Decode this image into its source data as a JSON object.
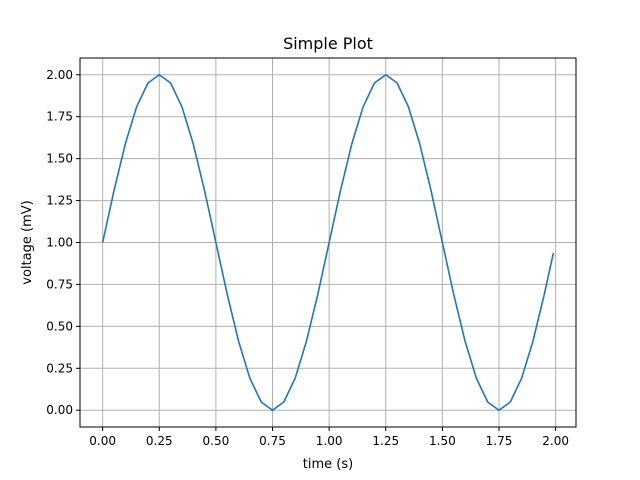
{
  "chart_data": {
    "type": "line",
    "title": "Simple Plot",
    "xlabel": "time (s)",
    "ylabel": "voltage (mV)",
    "xlim": [
      -0.1,
      2.09
    ],
    "ylim": [
      -0.1,
      2.1
    ],
    "xticks": [
      0.0,
      0.25,
      0.5,
      0.75,
      1.0,
      1.25,
      1.5,
      1.75,
      2.0
    ],
    "xtick_labels": [
      "0.00",
      "0.25",
      "0.50",
      "0.75",
      "1.00",
      "1.25",
      "1.50",
      "1.75",
      "2.00"
    ],
    "yticks": [
      0.0,
      0.25,
      0.5,
      0.75,
      1.0,
      1.25,
      1.5,
      1.75,
      2.0
    ],
    "ytick_labels": [
      "0.00",
      "0.25",
      "0.50",
      "0.75",
      "1.00",
      "1.25",
      "1.50",
      "1.75",
      "2.00"
    ],
    "grid": true,
    "color": "#1f77b4",
    "series": [
      {
        "x": [
          0.0,
          0.05,
          0.1,
          0.15,
          0.2,
          0.25,
          0.3,
          0.35,
          0.4,
          0.45,
          0.5,
          0.55,
          0.6,
          0.65,
          0.7,
          0.75,
          0.8,
          0.85,
          0.9,
          0.95,
          1.0,
          1.05,
          1.1,
          1.15,
          1.2,
          1.25,
          1.3,
          1.35,
          1.4,
          1.45,
          1.5,
          1.55,
          1.6,
          1.65,
          1.7,
          1.75,
          1.8,
          1.85,
          1.9,
          1.95,
          1.99
        ],
        "y": [
          1.0,
          1.309,
          1.588,
          1.809,
          1.951,
          2.0,
          1.951,
          1.809,
          1.588,
          1.309,
          1.0,
          0.691,
          0.412,
          0.191,
          0.049,
          0.0,
          0.049,
          0.191,
          0.412,
          0.691,
          1.0,
          1.309,
          1.588,
          1.809,
          1.951,
          2.0,
          1.951,
          1.809,
          1.588,
          1.309,
          1.0,
          0.691,
          0.412,
          0.191,
          0.049,
          0.0,
          0.049,
          0.191,
          0.412,
          0.691,
          0.937
        ]
      }
    ]
  }
}
